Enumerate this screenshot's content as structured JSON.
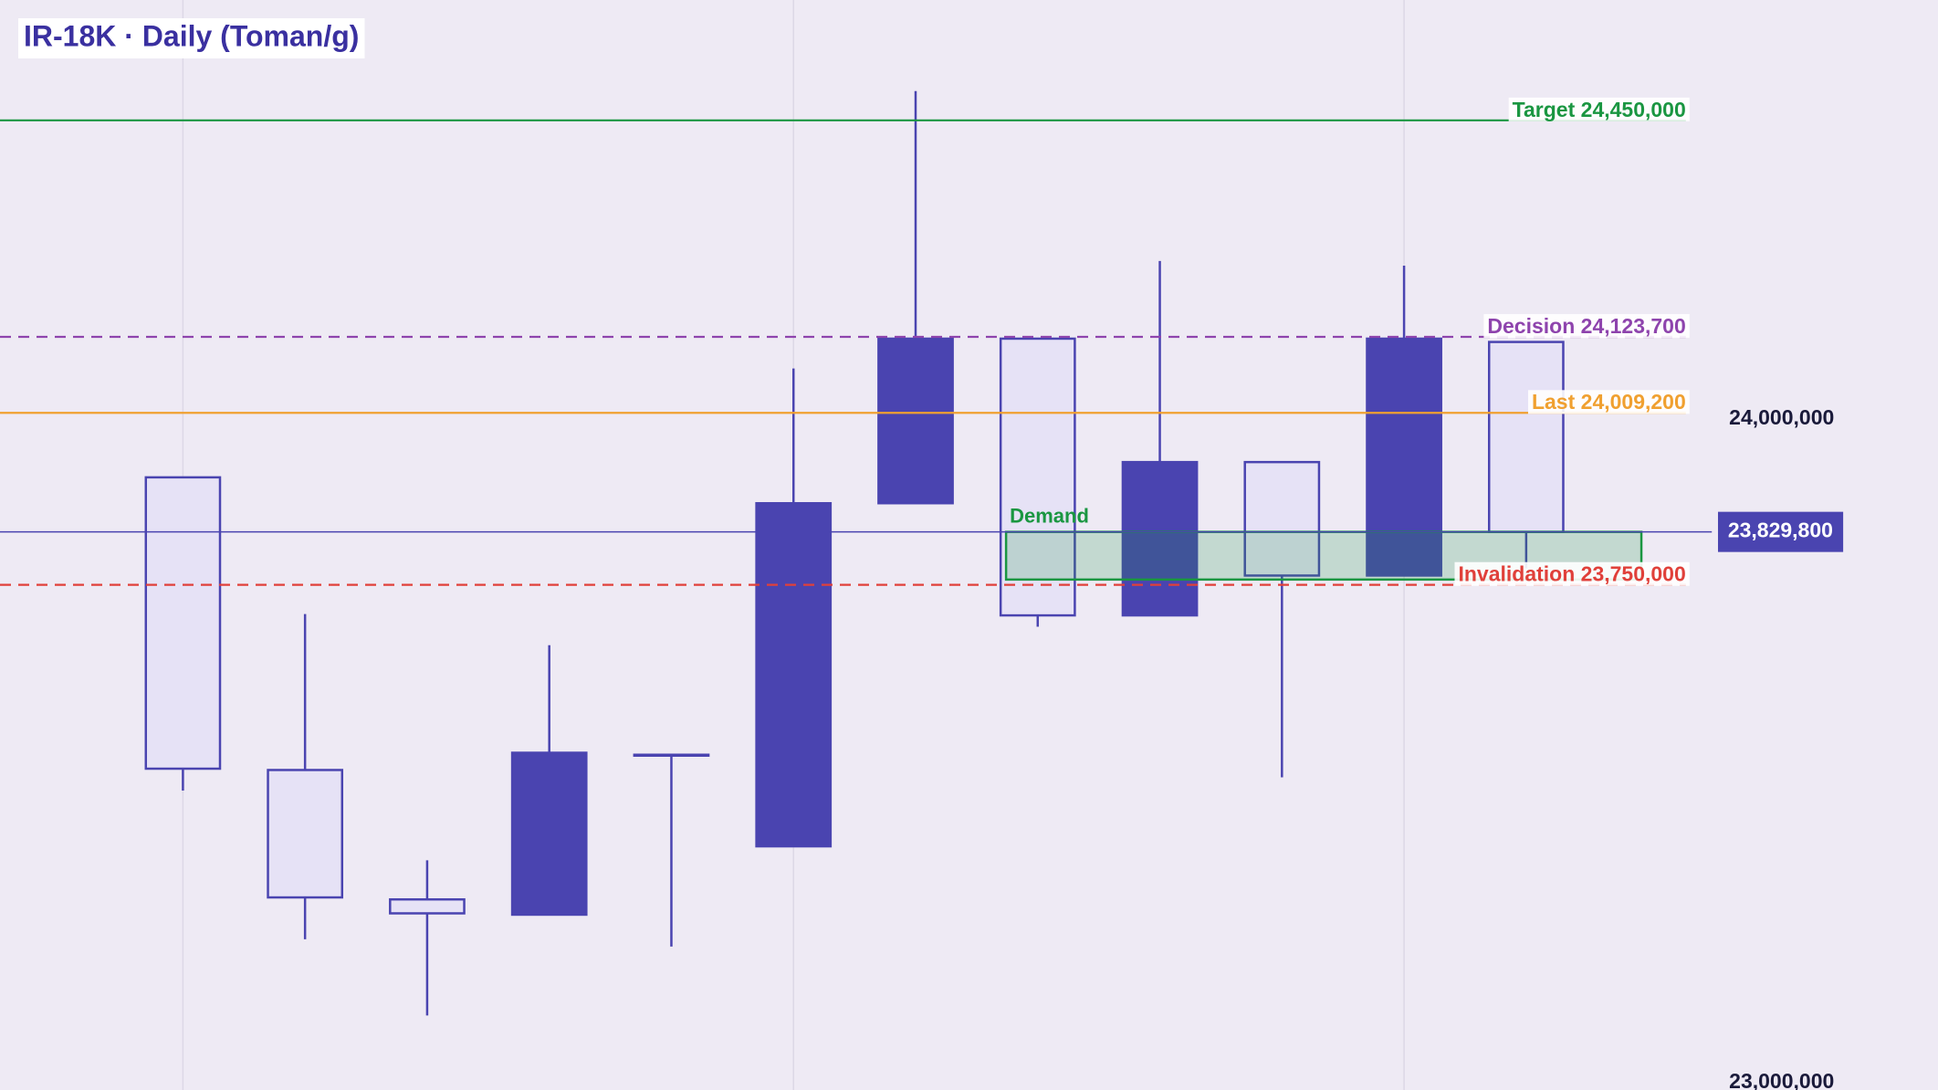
{
  "chart_data": {
    "type": "candlestick",
    "title": "IR-18K · Daily (Toman/g)",
    "categories": [
      null,
      null,
      null,
      null,
      null,
      null,
      null,
      null,
      null,
      null,
      null,
      null
    ],
    "open": [
      23912000,
      23471000,
      23276000,
      23253000,
      23494000,
      23356000,
      23873000,
      24121000,
      23704000,
      23935000,
      23764000,
      24116000
    ],
    "high": [
      23912000,
      23706000,
      23335000,
      23659000,
      23494000,
      24076000,
      24494000,
      24121000,
      24238000,
      23935000,
      24231000,
      24116000
    ],
    "low": [
      23440000,
      23216000,
      23101000,
      23253000,
      23205000,
      23356000,
      23873000,
      23687000,
      23704000,
      23460000,
      23764000,
      23775000
    ],
    "close": [
      23473000,
      23279000,
      23255000,
      23497000,
      23494000,
      23873000,
      24121000,
      23704000,
      23935000,
      23764000,
      24121000,
      23829800
    ],
    "up_color": "#4a44b0",
    "down_color": "#e6e2f6",
    "ylim": [
      22988800,
      24631300
    ],
    "yticks": [
      {
        "value": 24000000,
        "label": "24,000,000"
      },
      {
        "value": 23000000,
        "label": "23,000,000"
      }
    ],
    "levels": [
      {
        "name": "Target",
        "value": 24450000,
        "value_label": "24,450,000",
        "color": "#1a9641",
        "style": "solid"
      },
      {
        "name": "Decision",
        "value": 24123700,
        "value_label": "24,123,700",
        "color": "#8e44ad",
        "style": "dashed"
      },
      {
        "name": "Last",
        "value": 24009200,
        "value_label": "24,009,200",
        "color": "#f0a030",
        "style": "solid"
      },
      {
        "name": "Invalidation",
        "value": 23750000,
        "value_label": "23,750,000",
        "color": "#e0403a",
        "style": "dashed"
      }
    ],
    "zone": {
      "name": "Demand",
      "low": 23758000,
      "high": 23829800,
      "color": "#1a9641"
    },
    "current": {
      "value": 23829800,
      "label": "23,829,800",
      "color": "#4a44b0"
    }
  }
}
